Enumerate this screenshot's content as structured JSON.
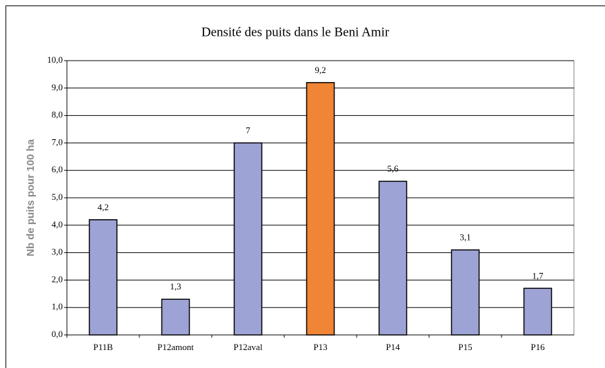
{
  "chart_data": {
    "type": "bar",
    "title": "Densité des puits dans le Beni Amir",
    "y_label": "Nb de puits pour 100 ha",
    "categories": [
      "P11B",
      "P12amont",
      "P12aval",
      "P13",
      "P14",
      "P15",
      "P16"
    ],
    "values": [
      4.2,
      1.3,
      7,
      9.2,
      5.6,
      3.1,
      1.7
    ],
    "value_labels": [
      "4,2",
      "1,3",
      "7",
      "9,2",
      "5,6",
      "3,1",
      "1,7"
    ],
    "colors": [
      "#9ea3d6",
      "#9ea3d6",
      "#9ea3d6",
      "#f08535",
      "#9ea3d6",
      "#9ea3d6",
      "#9ea3d6"
    ],
    "ylim": [
      0,
      10
    ],
    "yticks": [
      {
        "value": 0,
        "label": "0,0"
      },
      {
        "value": 1,
        "label": "1,0"
      },
      {
        "value": 2,
        "label": "2,0"
      },
      {
        "value": 3,
        "label": "3,0"
      },
      {
        "value": 4,
        "label": "4,0"
      },
      {
        "value": 5,
        "label": "5,0"
      },
      {
        "value": 6,
        "label": "6,0"
      },
      {
        "value": 7,
        "label": "7,0"
      },
      {
        "value": 8,
        "label": "8,0"
      },
      {
        "value": 9,
        "label": "9,0"
      },
      {
        "value": 10,
        "label": "10,0"
      }
    ],
    "grid": true
  }
}
